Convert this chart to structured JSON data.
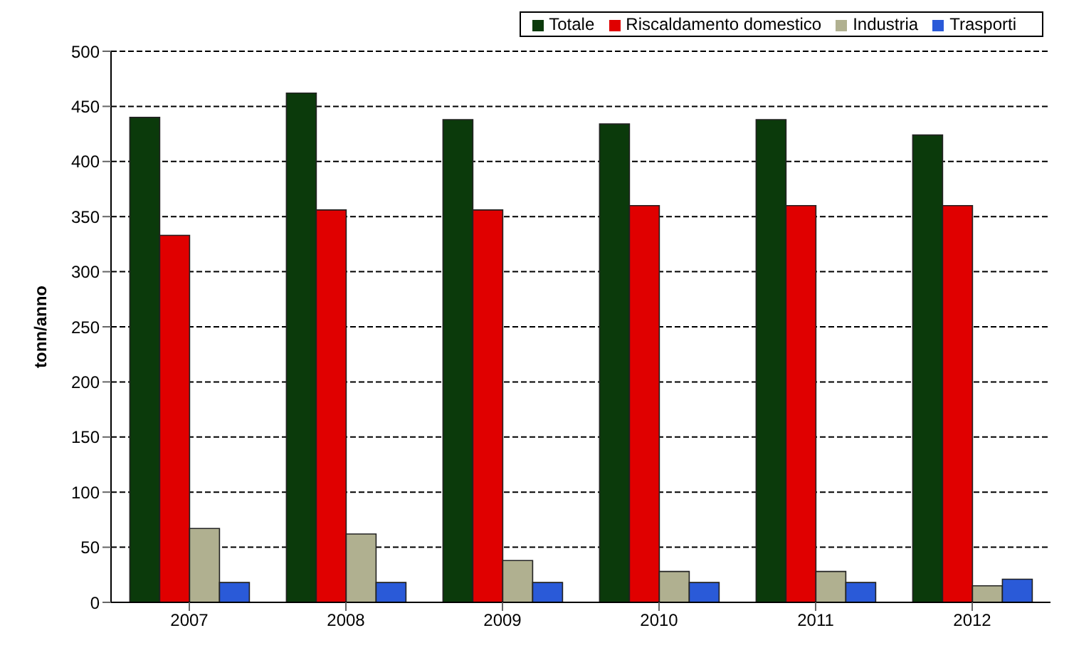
{
  "chart_data": {
    "type": "bar",
    "ylabel": "tonn/anno",
    "categories": [
      "2007",
      "2008",
      "2009",
      "2010",
      "2011",
      "2012"
    ],
    "series": [
      {
        "name": "Totale",
        "color": "#0b3a0b",
        "values": [
          440,
          462,
          438,
          434,
          438,
          424
        ]
      },
      {
        "name": "Riscaldamento domestico",
        "color": "#e00000",
        "values": [
          333,
          356,
          356,
          360,
          360,
          360
        ]
      },
      {
        "name": "Industria",
        "color": "#b0b090",
        "values": [
          67,
          62,
          38,
          28,
          28,
          15
        ]
      },
      {
        "name": "Trasporti",
        "color": "#2a5ad8",
        "values": [
          18,
          18,
          18,
          18,
          18,
          21
        ]
      }
    ],
    "ylim": [
      0,
      500
    ],
    "yticks": [
      0,
      50,
      100,
      150,
      200,
      250,
      300,
      350,
      400,
      450,
      500
    ],
    "grid": "y",
    "legend": "top right",
    "line_style": "dashed"
  }
}
